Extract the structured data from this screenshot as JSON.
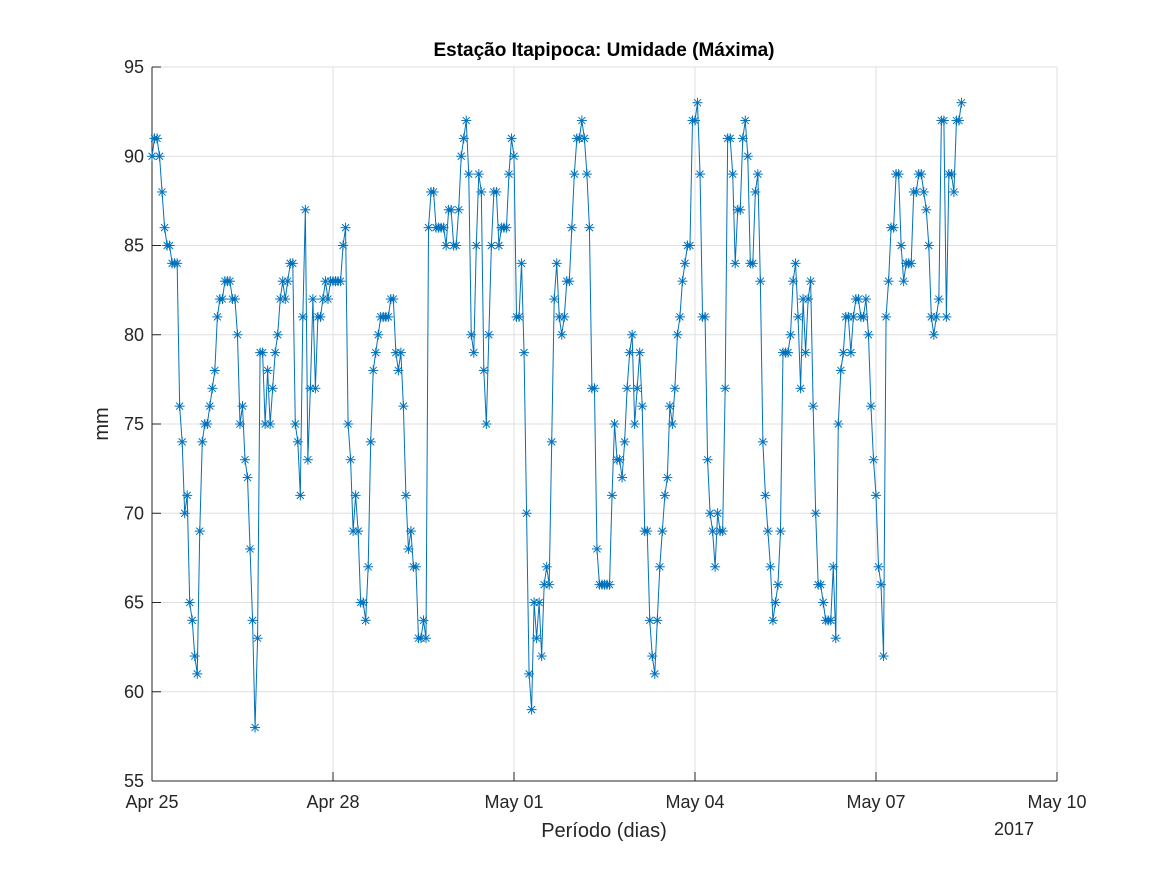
{
  "chart_data": {
    "type": "line",
    "marker": "asterisk",
    "title": "Estação Itapipoca: Umidade (Máxima)",
    "xlabel": "Período (dias)",
    "ylabel": "mm",
    "year_label": "2017",
    "x_range_days": [
      0,
      15
    ],
    "ylim": [
      55,
      95
    ],
    "grid": true,
    "line_color": "#0072bd",
    "x_ticks": [
      {
        "day": 0,
        "label": "Apr 25"
      },
      {
        "day": 3,
        "label": "Apr 28"
      },
      {
        "day": 6,
        "label": "May 01"
      },
      {
        "day": 9,
        "label": "May 04"
      },
      {
        "day": 12,
        "label": "May 07"
      },
      {
        "day": 15,
        "label": "May 10"
      }
    ],
    "y_ticks": [
      55,
      60,
      65,
      70,
      75,
      80,
      85,
      90,
      95
    ],
    "series": [
      {
        "values": [
          90,
          91,
          91,
          90,
          88,
          86,
          85,
          85,
          84,
          84,
          84,
          76,
          74,
          70,
          71,
          65,
          64,
          62,
          61,
          69,
          74,
          75,
          75,
          76,
          77,
          78,
          81,
          82,
          82,
          83,
          83,
          83,
          82,
          82,
          80,
          75,
          76,
          73,
          72,
          68,
          64,
          58,
          63,
          79,
          79,
          75,
          78,
          75,
          77,
          79,
          80,
          82,
          83,
          82,
          83,
          84,
          84,
          75,
          74,
          71,
          81,
          87,
          73,
          77,
          82,
          77,
          81,
          81,
          82,
          83,
          82,
          83,
          83,
          83,
          83,
          83,
          85,
          86,
          75,
          73,
          69,
          71,
          69,
          65,
          65,
          64,
          67,
          74,
          78,
          79,
          80,
          81,
          81,
          81,
          81,
          82,
          82,
          79,
          78,
          79,
          76,
          71,
          68,
          69,
          67,
          67,
          63,
          63,
          64,
          63,
          86,
          88,
          88,
          86,
          86,
          86,
          86,
          85,
          87,
          87,
          85,
          85,
          87,
          90,
          91,
          92,
          89,
          80,
          79,
          85,
          89,
          88,
          78,
          75,
          80,
          85,
          88,
          88,
          85,
          86,
          86,
          86,
          89,
          91,
          90,
          81,
          81,
          84,
          79,
          70,
          61,
          59,
          65,
          63,
          65,
          62,
          66,
          67,
          66,
          74,
          82,
          84,
          81,
          80,
          81,
          83,
          83,
          86,
          89,
          91,
          91,
          92,
          91,
          89,
          86,
          77,
          77,
          68,
          66,
          66,
          66,
          66,
          66,
          71,
          75,
          73,
          73,
          72,
          74,
          77,
          79,
          80,
          75,
          77,
          79,
          76,
          69,
          69,
          64,
          62,
          61,
          64,
          67,
          69,
          71,
          72,
          76,
          75,
          77,
          80,
          81,
          83,
          84,
          85,
          85,
          92,
          92,
          93,
          89,
          81,
          81,
          73,
          70,
          69,
          67,
          70,
          69,
          69,
          77,
          91,
          91,
          89,
          84,
          87,
          87,
          91,
          92,
          90,
          84,
          84,
          88,
          89,
          83,
          74,
          71,
          69,
          67,
          64,
          65,
          66,
          69,
          79,
          79,
          79,
          80,
          83,
          84,
          81,
          77,
          82,
          79,
          82,
          83,
          76,
          70,
          66,
          66,
          65,
          64,
          64,
          64,
          67,
          63,
          75,
          78,
          79,
          81,
          81,
          79,
          81,
          82,
          82,
          81,
          81,
          82,
          80,
          76,
          73,
          71,
          67,
          66,
          62,
          81,
          83,
          86,
          86,
          89,
          89,
          85,
          83,
          84,
          84,
          84,
          88,
          88,
          89,
          89,
          88,
          87,
          85,
          81,
          80,
          81,
          82,
          92,
          92,
          81,
          89,
          89,
          88,
          92,
          92,
          93
        ]
      }
    ]
  }
}
